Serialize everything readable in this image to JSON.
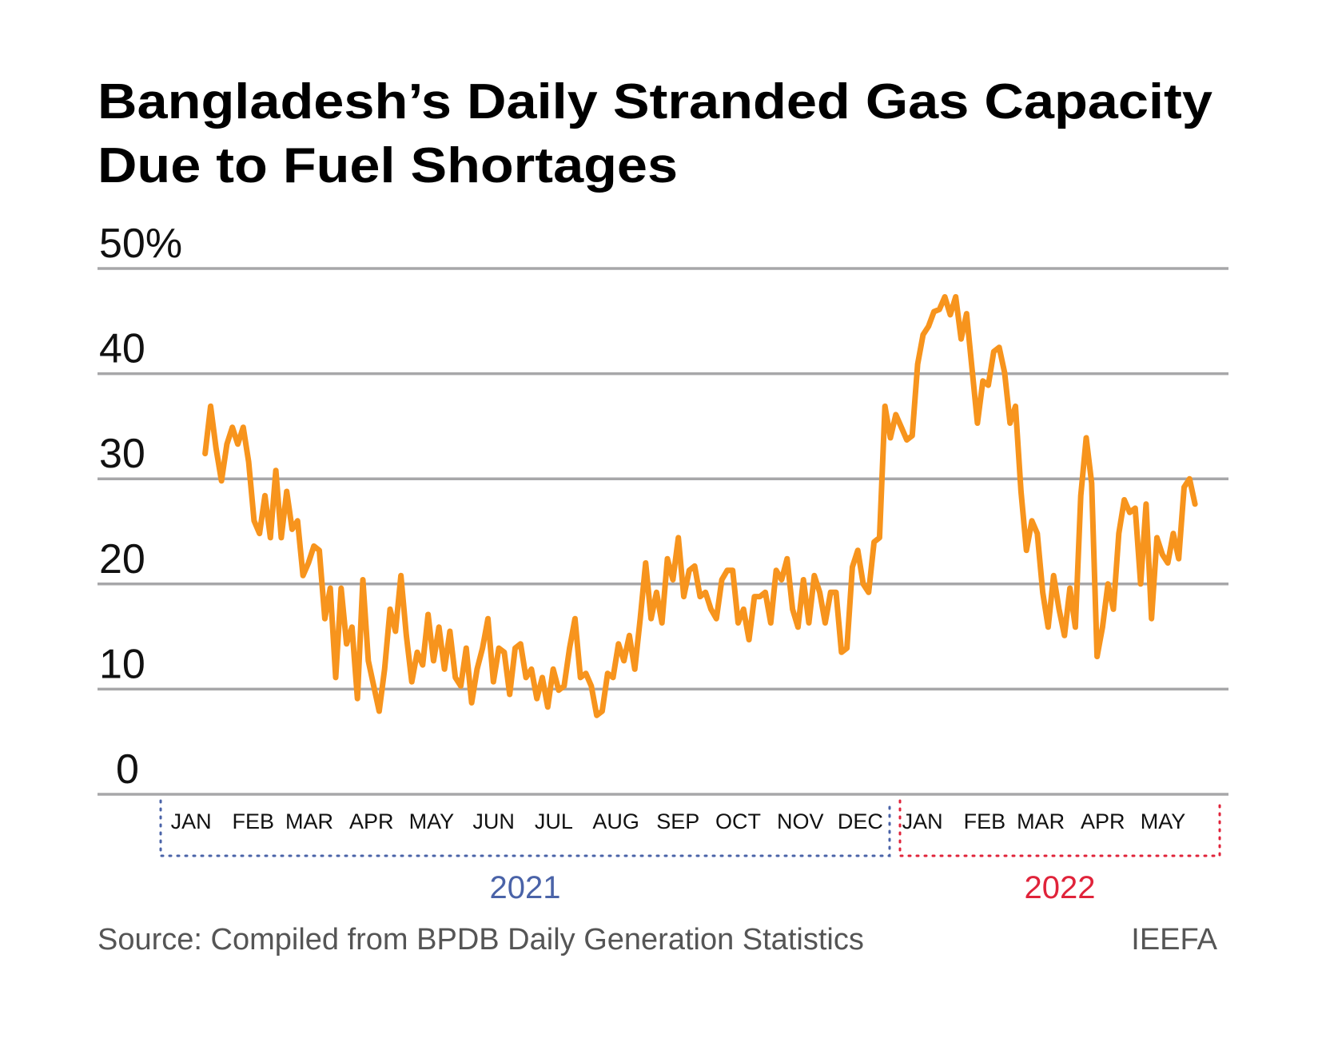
{
  "chart_data": {
    "type": "line",
    "title_lines": [
      "Bangladesh’s Daily Stranded Gas Capacity",
      "Due to Fuel Shortages"
    ],
    "xlabel": "",
    "ylabel": "",
    "ylim": [
      0,
      50
    ],
    "yticks": [
      "0",
      "10",
      "20",
      "30",
      "40",
      "50%"
    ],
    "ytick_values": [
      0,
      10,
      20,
      30,
      40,
      50
    ],
    "grid": true,
    "x_start": "2021-01-22",
    "x_end": "2022-05-31",
    "months": [
      {
        "label": "JAN",
        "year": 2021,
        "month": 1
      },
      {
        "label": "FEB",
        "year": 2021,
        "month": 2
      },
      {
        "label": "MAR",
        "year": 2021,
        "month": 3
      },
      {
        "label": "APR",
        "year": 2021,
        "month": 4
      },
      {
        "label": "MAY",
        "year": 2021,
        "month": 5
      },
      {
        "label": "JUN",
        "year": 2021,
        "month": 6
      },
      {
        "label": "JUL",
        "year": 2021,
        "month": 7
      },
      {
        "label": "AUG",
        "year": 2021,
        "month": 8
      },
      {
        "label": "SEP",
        "year": 2021,
        "month": 9
      },
      {
        "label": "OCT",
        "year": 2021,
        "month": 10
      },
      {
        "label": "NOV",
        "year": 2021,
        "month": 11
      },
      {
        "label": "DEC",
        "year": 2021,
        "month": 12
      },
      {
        "label": "JAN",
        "year": 2022,
        "month": 1
      },
      {
        "label": "FEB",
        "year": 2022,
        "month": 2
      },
      {
        "label": "MAR",
        "year": 2022,
        "month": 3
      },
      {
        "label": "APR",
        "year": 2022,
        "month": 4
      },
      {
        "label": "MAY",
        "year": 2022,
        "month": 5
      }
    ],
    "years": [
      {
        "label": "2021",
        "color": "#4a63a8"
      },
      {
        "label": "2022",
        "color": "#e0233a"
      }
    ],
    "line_color": "#f7941d",
    "grid_color": "#a7a7a9",
    "values": [
      32.4,
      36.9,
      32.9,
      29.8,
      33.3,
      34.9,
      33.3,
      34.9,
      31.6,
      26,
      24.8,
      28.4,
      24.4,
      30.8,
      24.4,
      28.8,
      25.2,
      26,
      20.8,
      22,
      23.6,
      23.2,
      16.7,
      19.6,
      11.1,
      19.6,
      14.3,
      15.9,
      9.1,
      20.4,
      12.7,
      10.3,
      7.9,
      11.9,
      17.6,
      15.5,
      20.8,
      15.1,
      10.7,
      13.5,
      12.3,
      17.1,
      12.7,
      15.9,
      11.9,
      15.5,
      11.1,
      10.3,
      13.9,
      8.7,
      11.9,
      13.9,
      16.7,
      10.7,
      13.9,
      13.5,
      9.5,
      13.9,
      14.3,
      11.1,
      11.9,
      9.1,
      11.1,
      8.3,
      11.9,
      9.9,
      10.3,
      13.9,
      16.7,
      11.1,
      11.5,
      10.3,
      7.5,
      7.9,
      11.5,
      11.1,
      14.3,
      12.7,
      15.1,
      11.9,
      16.7,
      22,
      16.7,
      19.2,
      16.3,
      22.4,
      20.4,
      24.4,
      18.8,
      21.3,
      21.7,
      18.8,
      19.2,
      17.6,
      16.7,
      20.4,
      21.3,
      21.3,
      16.3,
      17.6,
      14.7,
      18.8,
      18.8,
      19.2,
      16.3,
      21.3,
      20.4,
      22.4,
      17.6,
      15.9,
      20.4,
      16.3,
      20.8,
      19.2,
      16.3,
      19.2,
      19.2,
      13.5,
      13.9,
      21.6,
      23.2,
      20,
      19.2,
      24,
      24.4,
      36.9,
      33.9,
      36.1,
      34.9,
      33.7,
      34.1,
      40.9,
      43.7,
      44.5,
      45.9,
      46.1,
      47.3,
      45.6,
      47.3,
      43.3,
      45.7,
      40.5,
      35.3,
      39.3,
      38.9,
      42.1,
      42.5,
      40.1,
      35.3,
      36.9,
      28.8,
      23.2,
      26,
      24.8,
      19.2,
      15.9,
      20.8,
      17.6,
      15.1,
      19.6,
      15.9,
      28.4,
      33.9,
      29.6,
      13.1,
      15.9,
      20,
      17.6,
      24.8,
      28,
      26.8,
      27.2,
      20,
      27.6,
      16.7,
      24.4,
      22.8,
      22,
      24.8,
      22.4,
      29.2,
      30,
      27.6
    ]
  },
  "footer": {
    "source": "Source: Compiled from BPDB Daily Generation Statistics",
    "credit": "IEEFA"
  }
}
